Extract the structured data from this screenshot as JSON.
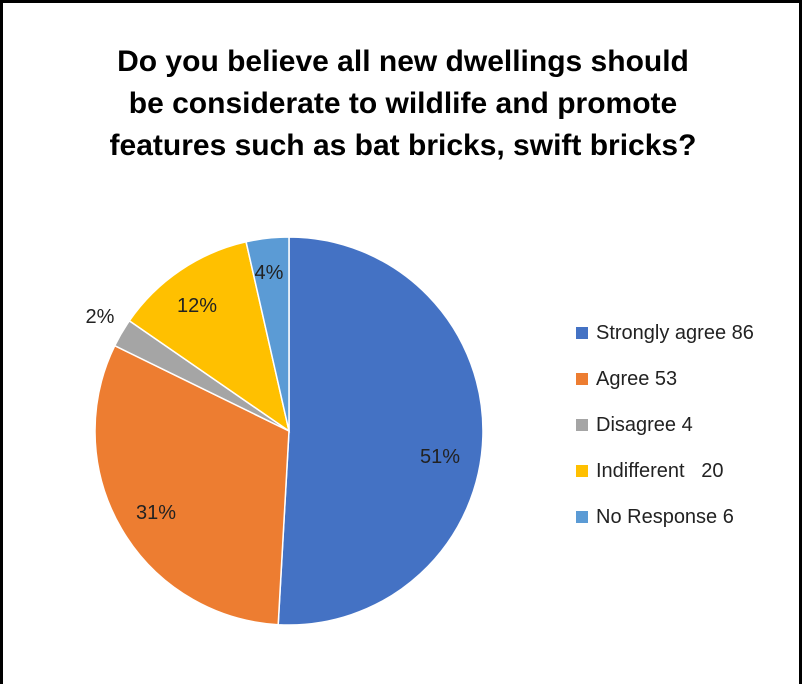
{
  "chart_data": {
    "type": "pie",
    "title_lines": [
      "Do you believe all new dwellings should",
      "be considerate to wildlife and promote",
      "features such as bat bricks, swift bricks?"
    ],
    "slices": [
      {
        "label": "Strongly agree 86",
        "value": 86,
        "percent_label": "51%",
        "color": "#4472C4"
      },
      {
        "label": "Agree 53",
        "value": 53,
        "percent_label": "31%",
        "color": "#ED7D31"
      },
      {
        "label": "Disagree 4",
        "value": 4,
        "percent_label": "2%",
        "color": "#A5A5A5"
      },
      {
        "label": "Indifferent   20",
        "value": 20,
        "percent_label": "12%",
        "color": "#FFC000"
      },
      {
        "label": "No Response 6",
        "value": 6,
        "percent_label": "4%",
        "color": "#5B9BD5"
      }
    ],
    "legend_position": "right"
  }
}
